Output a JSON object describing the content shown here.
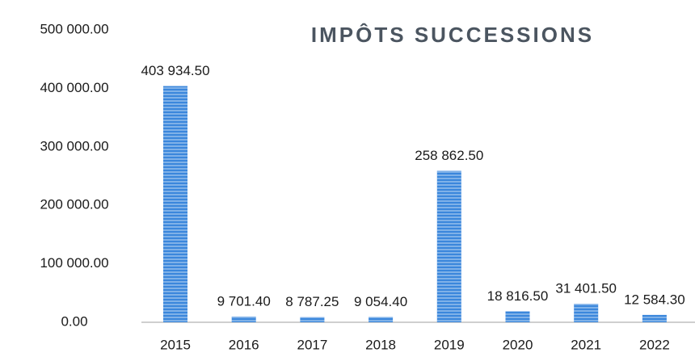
{
  "chart_data": {
    "type": "bar",
    "title": "IMPÔTS SUCCESSIONS",
    "categories": [
      "2015",
      "2016",
      "2017",
      "2018",
      "2019",
      "2020",
      "2021",
      "2022"
    ],
    "values": [
      403934.5,
      9701.4,
      8787.25,
      9054.4,
      258862.5,
      18816.5,
      31401.5,
      12584.3
    ],
    "value_labels": [
      "403 934.50",
      "9 701.40",
      "8 787.25",
      "9 054.40",
      "258 862.50",
      "18 816.50",
      "31 401.50",
      "12 584.30"
    ],
    "color": "#3b87dc",
    "ylim": [
      0,
      500000
    ],
    "yticks": [
      {
        "value": 0,
        "label": "0.00"
      },
      {
        "value": 100000,
        "label": "100 000.00"
      },
      {
        "value": 200000,
        "label": "200 000.00"
      },
      {
        "value": 300000,
        "label": "300 000.00"
      },
      {
        "value": 400000,
        "label": "400 000.00"
      },
      {
        "value": 500000,
        "label": "500 000.00"
      }
    ],
    "grid": false
  }
}
